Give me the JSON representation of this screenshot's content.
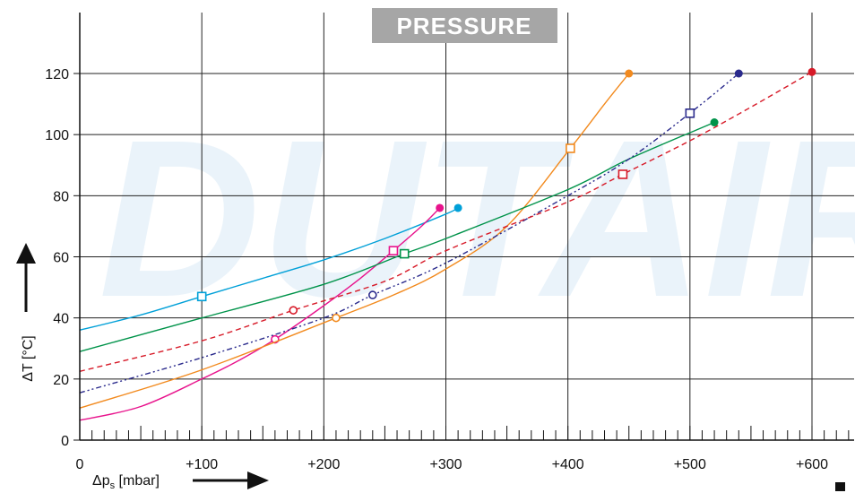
{
  "banner": {
    "title": "PRESSURE",
    "bg_color": "#a6a6a6"
  },
  "watermark": {
    "text": "DUTAIR"
  },
  "chart_data": {
    "type": "line",
    "title": "PRESSURE",
    "xlabel": "Δp",
    "xlabel_sub": "s",
    "xlabel_unit": "[mbar]",
    "ylabel": "ΔT [°C]",
    "xlim": [
      0,
      630
    ],
    "ylim": [
      0,
      130
    ],
    "x_ticks": [
      0,
      100,
      200,
      300,
      400,
      500,
      600
    ],
    "x_tick_labels": [
      "0",
      "+100",
      "+200",
      "+300",
      "+400",
      "+500",
      "+600"
    ],
    "y_ticks": [
      0,
      20,
      40,
      60,
      80,
      100,
      120
    ],
    "y_tick_labels": [
      "0",
      "20",
      "40",
      "60",
      "80",
      "100",
      "120"
    ],
    "grid": true,
    "legend": "none",
    "series": [
      {
        "color": "#00a0d8",
        "dash": "none",
        "points": [
          [
            0,
            36
          ],
          [
            50,
            41
          ],
          [
            100,
            47
          ],
          [
            150,
            53
          ],
          [
            200,
            59
          ],
          [
            250,
            66
          ],
          [
            300,
            74
          ],
          [
            310,
            76
          ]
        ],
        "open_markers": [
          {
            "x": 100,
            "y": 47,
            "shape": "square"
          }
        ],
        "end_marker": {
          "x": 310,
          "y": 76
        }
      },
      {
        "color": "#e8138c",
        "dash": "none",
        "points": [
          [
            0,
            6.5
          ],
          [
            50,
            11
          ],
          [
            100,
            20
          ],
          [
            130,
            26
          ],
          [
            160,
            33
          ],
          [
            200,
            44
          ],
          [
            230,
            53
          ],
          [
            257,
            62
          ],
          [
            280,
            70
          ],
          [
            295,
            76
          ]
        ],
        "open_markers": [
          {
            "x": 160,
            "y": 33,
            "shape": "circle"
          },
          {
            "x": 257,
            "y": 62,
            "shape": "square"
          }
        ],
        "end_marker": {
          "x": 295,
          "y": 76
        }
      },
      {
        "color": "#f28a1e",
        "dash": "none",
        "points": [
          [
            0,
            10.5
          ],
          [
            100,
            23
          ],
          [
            210,
            40
          ],
          [
            260,
            48
          ],
          [
            300,
            56
          ],
          [
            350,
            70
          ],
          [
            402,
            95.5
          ],
          [
            430,
            110
          ],
          [
            450,
            120
          ]
        ],
        "open_markers": [
          {
            "x": 210,
            "y": 40,
            "shape": "circle"
          },
          {
            "x": 402,
            "y": 95.5,
            "shape": "square"
          }
        ],
        "end_marker": {
          "x": 450,
          "y": 120
        }
      },
      {
        "color": "#00934a",
        "dash": "none",
        "points": [
          [
            0,
            29
          ],
          [
            100,
            40
          ],
          [
            200,
            51
          ],
          [
            266,
            61
          ],
          [
            300,
            66
          ],
          [
            400,
            82
          ],
          [
            450,
            92
          ],
          [
            520,
            104
          ]
        ],
        "open_markers": [
          {
            "x": 266,
            "y": 61,
            "shape": "square"
          }
        ],
        "end_marker": {
          "x": 520,
          "y": 104
        }
      },
      {
        "color": "#2a2a8c",
        "dash": "6,3,2,3,2,3",
        "points": [
          [
            0,
            15.5
          ],
          [
            100,
            27
          ],
          [
            200,
            40
          ],
          [
            240,
            47.5
          ],
          [
            300,
            58
          ],
          [
            400,
            80
          ],
          [
            450,
            92
          ],
          [
            500,
            107
          ],
          [
            540,
            120
          ]
        ],
        "open_markers": [
          {
            "x": 240,
            "y": 47.5,
            "shape": "circle"
          },
          {
            "x": 500,
            "y": 107,
            "shape": "square"
          }
        ],
        "end_marker": {
          "x": 540,
          "y": 120
        }
      },
      {
        "color": "#d71a28",
        "dash": "6,4",
        "points": [
          [
            0,
            22.5
          ],
          [
            100,
            32.5
          ],
          [
            175,
            42.5
          ],
          [
            250,
            52
          ],
          [
            300,
            62
          ],
          [
            400,
            78
          ],
          [
            445,
            87
          ],
          [
            500,
            98
          ],
          [
            550,
            109
          ],
          [
            600,
            120.5
          ]
        ],
        "open_markers": [
          {
            "x": 175,
            "y": 42.5,
            "shape": "circle"
          },
          {
            "x": 445,
            "y": 87,
            "shape": "square"
          }
        ],
        "end_marker": {
          "x": 600,
          "y": 120.5
        }
      }
    ]
  }
}
